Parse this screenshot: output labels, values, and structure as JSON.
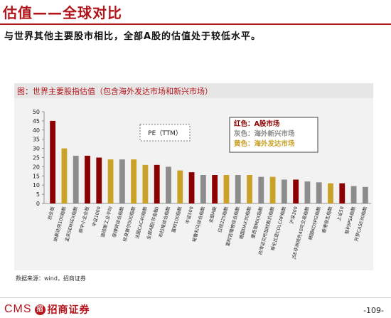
{
  "slide": {
    "title": "估值——全球对比",
    "subtitle": "与世界其他主要股市相比，全部A股的估值处于较低水平。",
    "chart_title": "图：世界主要股指估值（包含海外发达市场和新兴市场）",
    "source": "数据来源：wind，招商证券",
    "logo_text": "CMS",
    "logo_mark": "招",
    "logo_cn": "招商证券",
    "page_number": "-109-"
  },
  "chart_data": {
    "type": "bar",
    "title": "图：世界主要股指估值（包含海外发达市场和新兴市场）",
    "xlabel": "",
    "ylabel": "",
    "ylim": [
      0,
      50
    ],
    "yticks": [
      0,
      5,
      10,
      15,
      20,
      25,
      30,
      35,
      40,
      45,
      50
    ],
    "grid": false,
    "annotation": "PE（TTM）",
    "legend": {
      "placement": "top-right",
      "entries": [
        {
          "label": "红色：A股市场",
          "group": "A",
          "color": "#8b0000"
        },
        {
          "label": "灰色：海外新兴市场",
          "group": "E",
          "color": "#8c8c8c"
        },
        {
          "label": "黄色：海外发达市场",
          "group": "D",
          "color": "#c9a227"
        }
      ]
    },
    "colors": {
      "A": "#8b0000",
      "E": "#8c8c8c",
      "D": "#c9a227"
    },
    "categories": [
      "创业板",
      "纳斯达克100指数",
      "孟买SENSEX指数",
      "原中小企业板",
      "中证1000",
      "道琼斯工业平均",
      "菲律宾综合指数",
      "标准普尔500指数",
      "法国CAC40指数",
      "全部A股(非金融)",
      "布拉格综合指数",
      "富时100指数",
      "中证500",
      "秘鲁利马综合指数",
      "全部A股",
      "日经225指数",
      "富时吉隆坡综合指数",
      "德国DAX30指数",
      "墨西哥MXX指数",
      "台湾证交所加权股价指数",
      "哥伦比亚COLCAP指数",
      "沪深300",
      "JSE非洲领先40可交易指数",
      "韩国KOSPI2指数",
      "香港恒生指数",
      "上证50",
      "智利IPSA指数",
      "开罗CASE30指数"
    ],
    "values": [
      45,
      30,
      26,
      26,
      25,
      24,
      24,
      24,
      21,
      21,
      20,
      18,
      17,
      15.5,
      15.5,
      15.5,
      15.5,
      15.5,
      14.5,
      14.5,
      13,
      13,
      12,
      11.5,
      11,
      11,
      9.5,
      9
    ],
    "groups": [
      "A",
      "D",
      "E",
      "A",
      "A",
      "D",
      "E",
      "D",
      "D",
      "A",
      "E",
      "D",
      "A",
      "E",
      "A",
      "D",
      "E",
      "D",
      "E",
      "D",
      "E",
      "A",
      "E",
      "E",
      "D",
      "A",
      "E",
      "E"
    ]
  }
}
